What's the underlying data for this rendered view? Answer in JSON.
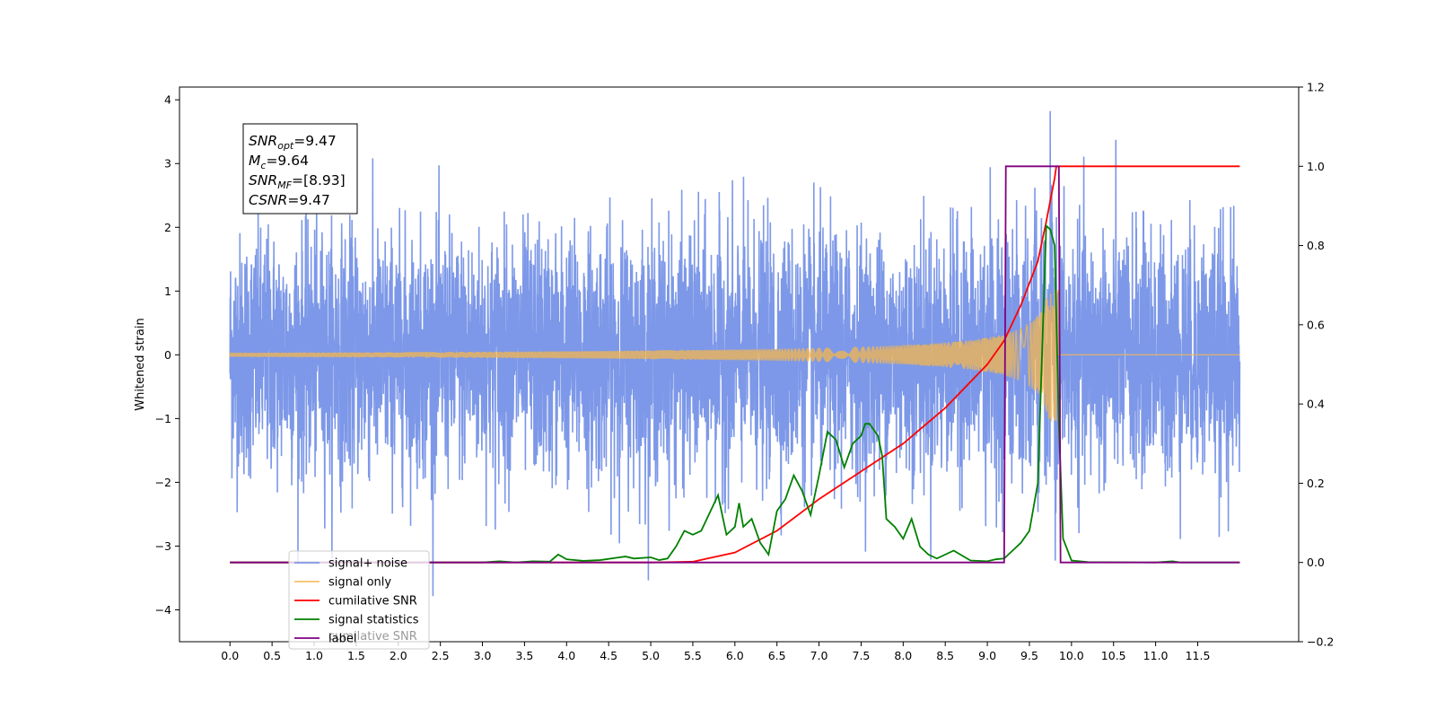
{
  "chart_data": {
    "type": "line",
    "ylabel": "Whitened strain",
    "xlim": [
      -0.6,
      12.7
    ],
    "ylim": [
      -4.5,
      4.2
    ],
    "ylim_right": [
      -0.2,
      1.2
    ],
    "xticks": [
      "0.0",
      "0.5",
      "1.0",
      "1.5",
      "2.0",
      "2.5",
      "3.0",
      "3.5",
      "4.0",
      "4.5",
      "5.0",
      "5.5",
      "6.0",
      "6.5",
      "7.0",
      "7.5",
      "8.0",
      "8.5",
      "9.0",
      "9.5",
      "10.0",
      "10.5",
      "11.0",
      "11.5"
    ],
    "yticks_left": [
      "4",
      "3",
      "2",
      "1",
      "0",
      "−1",
      "−2",
      "−3",
      "−4"
    ],
    "yticks_right": [
      "1.2",
      "1.0",
      "0.8",
      "0.6",
      "0.4",
      "0.2",
      "0.0",
      "−0.2"
    ],
    "grid": false,
    "legend_position": "bottom-left",
    "annotation": {
      "lines": [
        {
          "base": "SNR",
          "sub": "opt",
          "rest": "=9.47"
        },
        {
          "base": "M",
          "sub": "c",
          "rest": "=9.64"
        },
        {
          "base": "SNR",
          "sub": "MF",
          "rest": "=[8.93]"
        },
        {
          "base": "CSNR",
          "sub": "",
          "rest": "=9.47"
        }
      ]
    },
    "series": [
      {
        "name": "signal+ noise",
        "axis": "left",
        "color": "#6f8de6",
        "x_range": [
          0.0,
          12.0
        ],
        "envelope": {
          "typical_abs": 1.6,
          "peak_abs": 3.8
        }
      },
      {
        "name": "signal only",
        "axis": "left",
        "color": "#f5b74e",
        "x_range": [
          0.0,
          12.0
        ],
        "chirp": {
          "amplitude_start": 0.01,
          "amplitude_peak": 1.05,
          "merger_x": 9.82,
          "end_x": 9.84
        }
      },
      {
        "name": "cumilative SNR",
        "axis": "right",
        "color": "#ff0000",
        "x": [
          0,
          4.5,
          5.0,
          5.5,
          6.0,
          6.5,
          7.0,
          7.5,
          8.0,
          8.5,
          9.0,
          9.2,
          9.4,
          9.6,
          9.7,
          9.8,
          9.82,
          10.0,
          11.0,
          12.0
        ],
        "y": [
          0.0,
          0.0,
          0.0,
          0.002,
          0.025,
          0.08,
          0.16,
          0.23,
          0.3,
          0.39,
          0.5,
          0.56,
          0.65,
          0.76,
          0.86,
          0.97,
          1.0,
          1.0,
          1.0,
          1.0
        ]
      },
      {
        "name": "signal statistics",
        "axis": "right",
        "color": "#008000",
        "x": [
          0.0,
          3.0,
          3.2,
          3.4,
          3.6,
          3.8,
          3.9,
          4.0,
          4.2,
          4.4,
          4.6,
          4.7,
          4.8,
          5.0,
          5.1,
          5.2,
          5.3,
          5.4,
          5.5,
          5.6,
          5.8,
          5.9,
          6.0,
          6.05,
          6.1,
          6.2,
          6.3,
          6.4,
          6.5,
          6.6,
          6.7,
          6.8,
          6.9,
          7.0,
          7.1,
          7.2,
          7.3,
          7.35,
          7.4,
          7.5,
          7.55,
          7.6,
          7.7,
          7.75,
          7.8,
          7.9,
          8.0,
          8.1,
          8.2,
          8.3,
          8.4,
          8.6,
          8.8,
          9.0,
          9.1,
          9.2,
          9.3,
          9.4,
          9.5,
          9.6,
          9.7,
          9.75,
          9.8,
          9.85,
          9.9,
          10.0,
          10.2,
          11.0,
          11.2,
          11.3,
          12.0
        ],
        "y": [
          0.0,
          0.0,
          0.003,
          0.0,
          0.003,
          0.002,
          0.02,
          0.008,
          0.004,
          0.006,
          0.012,
          0.015,
          0.01,
          0.013,
          0.006,
          0.01,
          0.04,
          0.08,
          0.07,
          0.08,
          0.17,
          0.07,
          0.09,
          0.15,
          0.09,
          0.11,
          0.05,
          0.02,
          0.13,
          0.16,
          0.22,
          0.18,
          0.12,
          0.22,
          0.33,
          0.31,
          0.24,
          0.27,
          0.3,
          0.32,
          0.35,
          0.35,
          0.32,
          0.27,
          0.11,
          0.09,
          0.06,
          0.11,
          0.04,
          0.02,
          0.01,
          0.03,
          0.005,
          0.003,
          0.008,
          0.01,
          0.03,
          0.05,
          0.08,
          0.2,
          0.85,
          0.84,
          0.8,
          0.35,
          0.06,
          0.005,
          0.001,
          0.0,
          0.003,
          0.0,
          0.0
        ]
      },
      {
        "name": "label",
        "axis": "right",
        "color": "#800080",
        "x": [
          0.0,
          9.2,
          9.22,
          9.85,
          9.87,
          12.0
        ],
        "y": [
          0.0,
          0.0,
          1.0,
          1.0,
          0.0,
          0.0
        ]
      }
    ],
    "legend_overlap_text": "cumilative SNR"
  }
}
